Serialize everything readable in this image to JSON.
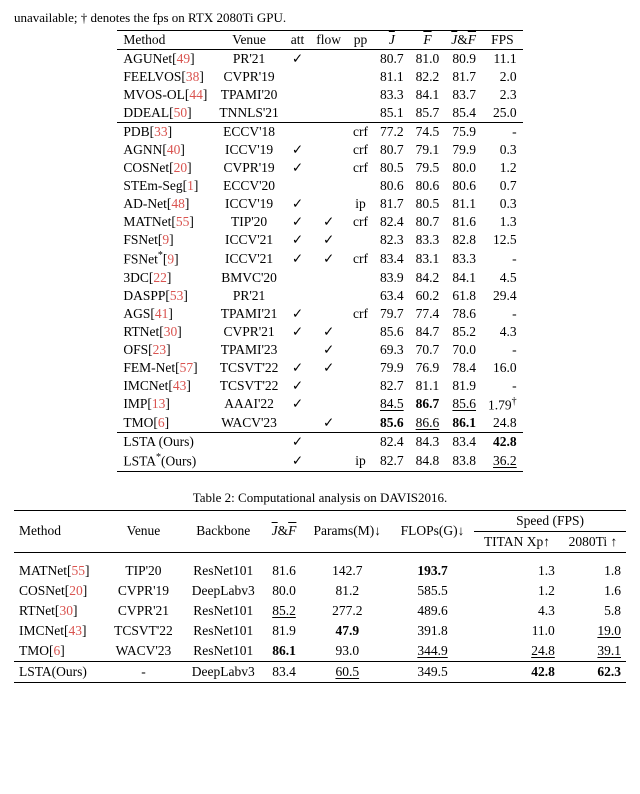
{
  "top_caption": "unavailable; † denotes the fps on RTX 2080Ti GPU.",
  "t1": {
    "headers": [
      "Method",
      "Venue",
      "att",
      "flow",
      "pp",
      "J",
      "F",
      "JF",
      "FPS"
    ],
    "groups": [
      [
        {
          "m": "AGUNet",
          "r": "49",
          "v": "PR'21",
          "att": true,
          "flow": false,
          "pp": "",
          "j": "80.7",
          "f": "81.0",
          "jf": "80.9",
          "fps": "11.1"
        },
        {
          "m": "FEELVOS",
          "r": "38",
          "v": "CVPR'19",
          "att": false,
          "flow": false,
          "pp": "",
          "j": "81.1",
          "f": "82.2",
          "jf": "81.7",
          "fps": "2.0"
        },
        {
          "m": "MVOS-OL",
          "r": "44",
          "v": "TPAMI'20",
          "att": false,
          "flow": false,
          "pp": "",
          "j": "83.3",
          "f": "84.1",
          "jf": "83.7",
          "fps": "2.3"
        },
        {
          "m": "DDEAL",
          "r": "50",
          "v": "TNNLS'21",
          "att": false,
          "flow": false,
          "pp": "",
          "j": "85.1",
          "f": "85.7",
          "jf": "85.4",
          "fps": "25.0"
        }
      ],
      [
        {
          "m": "PDB",
          "r": "33",
          "v": "ECCV'18",
          "att": false,
          "flow": false,
          "pp": "crf",
          "j": "77.2",
          "f": "74.5",
          "jf": "75.9",
          "fps": "-"
        },
        {
          "m": "AGNN",
          "r": "40",
          "v": "ICCV'19",
          "att": true,
          "flow": false,
          "pp": "crf",
          "j": "80.7",
          "f": "79.1",
          "jf": "79.9",
          "fps": "0.3"
        },
        {
          "m": "COSNet",
          "r": "20",
          "v": "CVPR'19",
          "att": true,
          "flow": false,
          "pp": "crf",
          "j": "80.5",
          "f": "79.5",
          "jf": "80.0",
          "fps": "1.2"
        },
        {
          "m": "STEm-Seg",
          "r": "1",
          "v": "ECCV'20",
          "att": false,
          "flow": false,
          "pp": "",
          "j": "80.6",
          "f": "80.6",
          "jf": "80.6",
          "fps": "0.7"
        },
        {
          "m": "AD-Net",
          "r": "48",
          "v": "ICCV'19",
          "att": true,
          "flow": false,
          "pp": "ip",
          "j": "81.7",
          "f": "80.5",
          "jf": "81.1",
          "fps": "0.3"
        },
        {
          "m": "MATNet",
          "r": "55",
          "v": "TIP'20",
          "att": true,
          "flow": true,
          "pp": "crf",
          "j": "82.4",
          "f": "80.7",
          "jf": "81.6",
          "fps": "1.3"
        },
        {
          "m": "FSNet",
          "r": "9",
          "v": "ICCV'21",
          "att": true,
          "flow": true,
          "pp": "",
          "j": "82.3",
          "f": "83.3",
          "jf": "82.8",
          "fps": "12.5"
        },
        {
          "m": "FSNet*",
          "r": "9",
          "v": "ICCV'21",
          "att": true,
          "flow": true,
          "pp": "crf",
          "j": "83.4",
          "f": "83.1",
          "jf": "83.3",
          "fps": "-",
          "star": true
        },
        {
          "m": "3DC",
          "r": "22",
          "v": "BMVC'20",
          "att": false,
          "flow": false,
          "pp": "",
          "j": "83.9",
          "f": "84.2",
          "jf": "84.1",
          "fps": "4.5"
        },
        {
          "m": "DASPP",
          "r": "53",
          "v": "PR'21",
          "att": false,
          "flow": false,
          "pp": "",
          "j": "63.4",
          "f": "60.2",
          "jf": "61.8",
          "fps": "29.4"
        },
        {
          "m": "AGS",
          "r": "41",
          "v": "TPAMI'21",
          "att": true,
          "flow": false,
          "pp": "crf",
          "j": "79.7",
          "f": "77.4",
          "jf": "78.6",
          "fps": "-"
        },
        {
          "m": "RTNet",
          "r": "30",
          "v": "CVPR'21",
          "att": true,
          "flow": true,
          "pp": "",
          "j": "85.6",
          "f": "84.7",
          "jf": "85.2",
          "fps": "4.3"
        },
        {
          "m": "OFS",
          "r": "23",
          "v": "TPAMI'23",
          "att": false,
          "flow": true,
          "pp": "",
          "j": "69.3",
          "f": "70.7",
          "jf": "70.0",
          "fps": "-"
        },
        {
          "m": "FEM-Net",
          "r": "57",
          "v": "TCSVT'22",
          "att": true,
          "flow": true,
          "pp": "",
          "j": "79.9",
          "f": "76.9",
          "jf": "78.4",
          "fps": "16.0"
        },
        {
          "m": "IMCNet",
          "r": "43",
          "v": "TCSVT'22",
          "att": true,
          "flow": false,
          "pp": "",
          "j": "82.7",
          "f": "81.1",
          "jf": "81.9",
          "fps": "-"
        },
        {
          "m": "IMP",
          "r": "13",
          "v": "AAAI'22",
          "att": true,
          "flow": false,
          "pp": "",
          "j": "84.5",
          "ju": true,
          "f": "86.7",
          "fb": true,
          "jf": "85.6",
          "jfu": true,
          "fps": "1.79",
          "dag": true
        },
        {
          "m": "TMO",
          "r": "6",
          "v": "WACV'23",
          "att": false,
          "flow": true,
          "pp": "",
          "j": "85.6",
          "jb": true,
          "f": "86.6",
          "fu": true,
          "jf": "86.1",
          "jfb": true,
          "fps": "24.8"
        }
      ],
      [
        {
          "m": "LSTA (Ours)",
          "v": "",
          "att": true,
          "flow": false,
          "pp": "",
          "j": "82.4",
          "f": "84.3",
          "jf": "83.4",
          "fps": "42.8",
          "fpsb": true
        },
        {
          "m": "LSTA*(Ours)",
          "v": "",
          "att": true,
          "flow": false,
          "pp": "ip",
          "j": "82.7",
          "f": "84.8",
          "jf": "83.8",
          "fps": "36.2",
          "fpsu": true,
          "star": true
        }
      ]
    ]
  },
  "t2caption": "Table 2: Computational analysis on DAVIS2016.",
  "t2": {
    "h": {
      "method": "Method",
      "venue": "Venue",
      "bb": "Backbone",
      "jf": "J &F",
      "params": "Params(M)↓",
      "flops": "FLOPs(G)↓",
      "speed": "Speed (FPS)",
      "xp": "TITAN Xp↑",
      "ti": "2080Ti ↑"
    },
    "rows": [
      {
        "m": "MATNet",
        "r": "55",
        "v": "TIP'20",
        "bb": "ResNet101",
        "jf": "81.6",
        "p": "142.7",
        "fl": "193.7",
        "flb": true,
        "xp": "1.3",
        "ti": "1.8"
      },
      {
        "m": "COSNet",
        "r": "20",
        "v": "CVPR'19",
        "bb": "DeepLabv3",
        "jf": "80.0",
        "p": "81.2",
        "fl": "585.5",
        "xp": "1.2",
        "ti": "1.6"
      },
      {
        "m": "RTNet",
        "r": "30",
        "v": "CVPR'21",
        "bb": "ResNet101",
        "jf": "85.2",
        "jfu": true,
        "p": "277.2",
        "fl": "489.6",
        "xp": "4.3",
        "ti": "5.8"
      },
      {
        "m": "IMCNet",
        "r": "43",
        "v": "TCSVT'22",
        "bb": "ResNet101",
        "jf": "81.9",
        "p": "47.9",
        "pb": true,
        "fl": "391.8",
        "xp": "11.0",
        "ti": "19.0",
        "tiu": true
      },
      {
        "m": "TMO",
        "r": "6",
        "v": "WACV'23",
        "bb": "ResNet101",
        "jf": "86.1",
        "jfb": true,
        "p": "93.0",
        "fl": "344.9",
        "flu": true,
        "xp": "24.8",
        "xpu": true,
        "ti": "39.1",
        "tiu": true
      }
    ],
    "ours": {
      "m": "LSTA(Ours)",
      "v": "-",
      "bb": "DeepLabv3",
      "jf": "83.4",
      "p": "60.5",
      "pu": true,
      "fl": "349.5",
      "xp": "42.8",
      "xpb": true,
      "ti": "62.3",
      "tib": true
    }
  }
}
